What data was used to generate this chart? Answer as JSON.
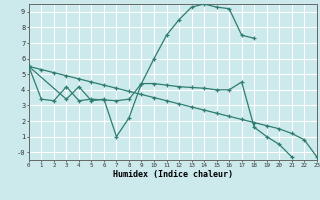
{
  "xlabel": "Humidex (Indice chaleur)",
  "bg_color": "#cce9ec",
  "grid_color": "#ffffff",
  "line_color": "#2e7d6e",
  "xlim": [
    0,
    23
  ],
  "ylim": [
    -0.5,
    9.5
  ],
  "line1_x": [
    0,
    1,
    2,
    3,
    4,
    5,
    6,
    7,
    8,
    9,
    10,
    11,
    12,
    13,
    14,
    15,
    16,
    17,
    18,
    19,
    20,
    21,
    22,
    23
  ],
  "line1_y": [
    5.5,
    5.3,
    5.1,
    4.9,
    4.7,
    4.5,
    4.3,
    4.1,
    3.9,
    3.7,
    3.5,
    3.3,
    3.1,
    2.9,
    2.7,
    2.5,
    2.3,
    2.1,
    1.9,
    1.7,
    1.5,
    1.2,
    0.8,
    -0.3
  ],
  "line2_x": [
    0,
    1,
    2,
    3,
    4,
    5,
    6,
    7,
    8,
    9,
    10,
    11,
    12,
    13,
    14,
    15,
    16,
    17,
    18,
    19,
    20,
    21,
    22
  ],
  "line2_y": [
    5.5,
    3.4,
    3.3,
    4.2,
    3.3,
    3.4,
    3.35,
    3.3,
    3.4,
    4.4,
    4.4,
    4.3,
    4.2,
    4.15,
    4.1,
    4.0,
    4.0,
    4.5,
    1.6,
    1.0,
    0.5,
    -0.3,
    null
  ],
  "line3_x": [
    0,
    3,
    4,
    5,
    6,
    7,
    8,
    9,
    10,
    11,
    12,
    13,
    14,
    15,
    16,
    17,
    18
  ],
  "line3_y": [
    5.5,
    3.4,
    4.2,
    3.3,
    3.4,
    1.0,
    2.2,
    4.4,
    6.0,
    7.5,
    8.5,
    9.3,
    9.5,
    9.3,
    9.2,
    7.5,
    7.3
  ],
  "xticks": [
    0,
    1,
    2,
    3,
    4,
    5,
    6,
    7,
    8,
    9,
    10,
    11,
    12,
    13,
    14,
    15,
    16,
    17,
    18,
    19,
    20,
    21,
    22,
    23
  ],
  "yticks": [
    0,
    1,
    2,
    3,
    4,
    5,
    6,
    7,
    8,
    9
  ]
}
